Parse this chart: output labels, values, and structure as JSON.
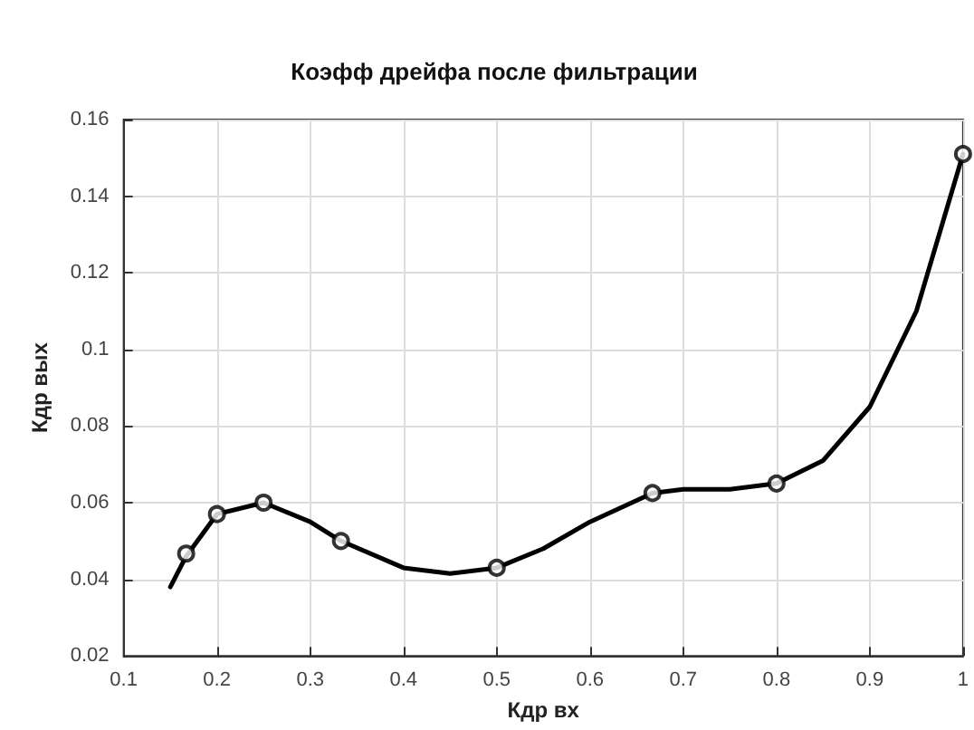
{
  "chart_data": {
    "type": "line",
    "title": "Коэфф дрейфа после фильтрации",
    "xlabel": "Кдр вх",
    "ylabel": "Кдр вых",
    "xlim": [
      0.1,
      1
    ],
    "xticks": [
      0.1,
      0.2,
      0.3,
      0.4,
      0.5,
      0.6,
      0.7,
      0.8,
      0.9,
      1
    ],
    "ylim": [
      0.02,
      0.16
    ],
    "yticks": [
      0.02,
      0.04,
      0.06,
      0.08,
      0.1,
      0.12,
      0.14,
      0.16
    ],
    "grid": true,
    "series": [
      {
        "color": "#000000",
        "marker": "none",
        "line_style": "solid",
        "x": [
          0.15,
          0.167,
          0.2,
          0.25,
          0.3,
          0.333,
          0.4,
          0.45,
          0.5,
          0.55,
          0.6,
          0.667,
          0.7,
          0.75,
          0.8,
          0.85,
          0.9,
          0.95,
          1
        ],
        "values": [
          0.038,
          0.046,
          0.057,
          0.06,
          0.055,
          0.05,
          0.043,
          0.0415,
          0.043,
          0.048,
          0.055,
          0.0625,
          0.0635,
          0.0635,
          0.065,
          0.071,
          0.085,
          0.11,
          0.151
        ]
      },
      {
        "type": "scatter",
        "color": "#000000",
        "marker": "circle",
        "x": [
          0.167,
          0.2,
          0.25,
          0.333,
          0.5,
          0.667,
          0.8,
          1
        ],
        "values": [
          0.0467,
          0.057,
          0.06,
          0.05,
          0.043,
          0.0625,
          0.065,
          0.151
        ]
      }
    ]
  }
}
